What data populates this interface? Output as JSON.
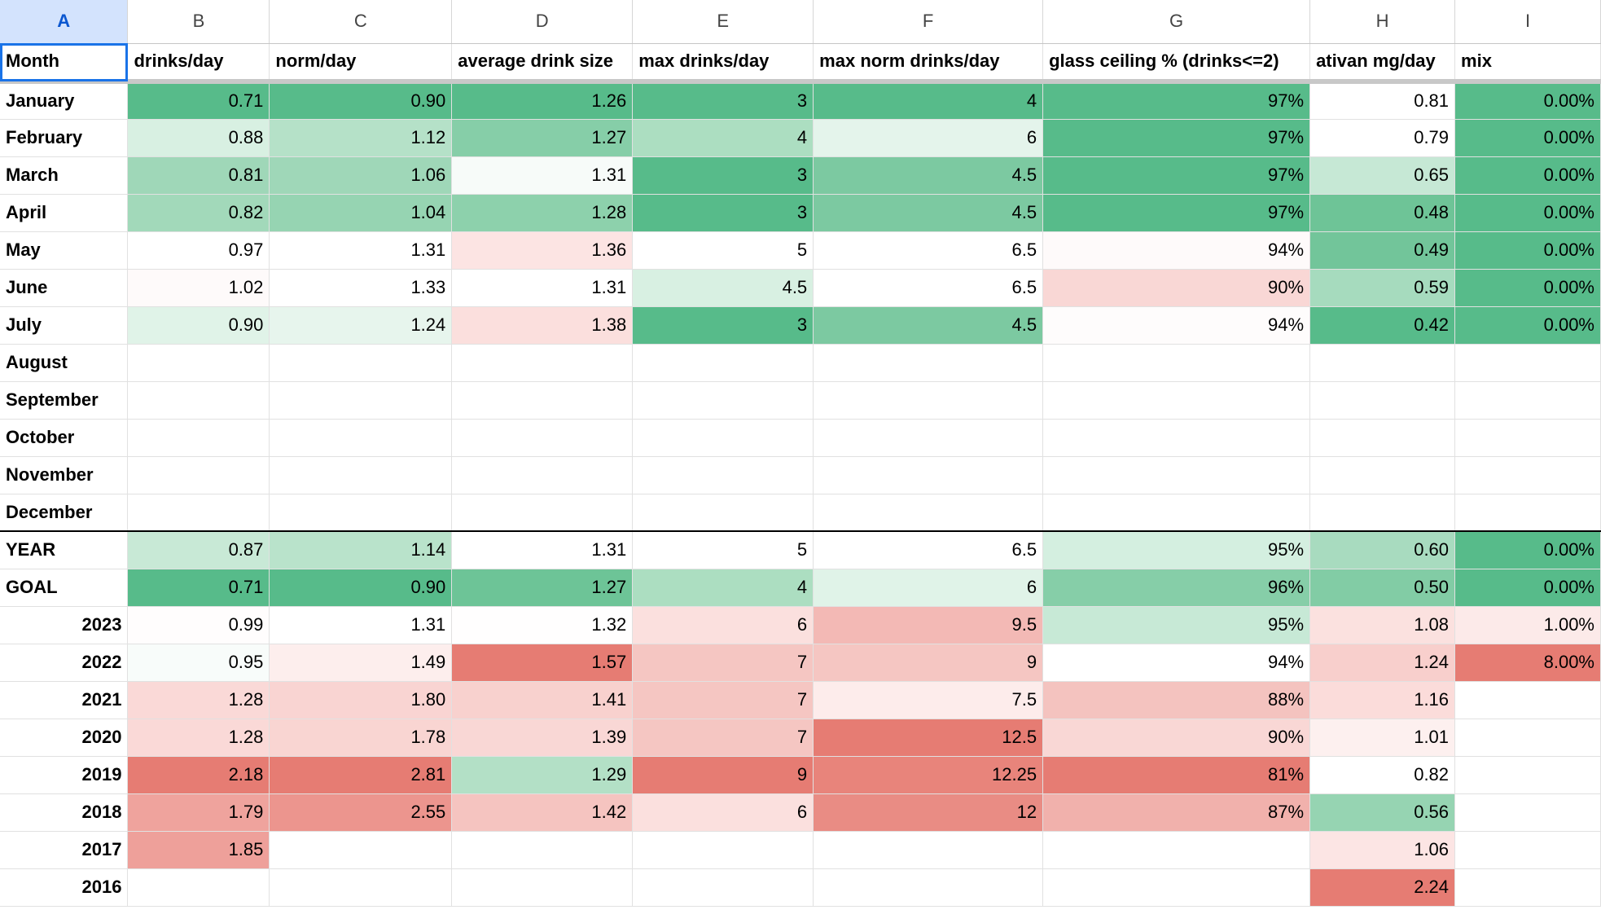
{
  "columns": [
    "A",
    "B",
    "C",
    "D",
    "E",
    "F",
    "G",
    "H",
    "I"
  ],
  "header": [
    "Month",
    "drinks/day",
    "norm/day",
    "average drink size",
    "max drinks/day",
    "max norm drinks/day",
    "glass ceiling % (drinks<=2)",
    "ativan mg/day",
    "mix"
  ],
  "rows": [
    {
      "label": "January",
      "cells": [
        "0.71",
        "0.90",
        "1.26",
        "3",
        "4",
        "97%",
        "0.81",
        "0.00%"
      ],
      "colors": [
        "#57bb8a",
        "#57bb8a",
        "#57bb8a",
        "#57bb8a",
        "#57bb8a",
        "#57bb8a",
        "#ffffff",
        "#57bb8a"
      ]
    },
    {
      "label": "February",
      "cells": [
        "0.88",
        "1.12",
        "1.27",
        "4",
        "6",
        "97%",
        "0.79",
        "0.00%"
      ],
      "colors": [
        "#d8f0e2",
        "#b5e1c8",
        "#86cea8",
        "#acdec1",
        "#e4f4eb",
        "#57bb8a",
        "#ffffff",
        "#57bb8a"
      ]
    },
    {
      "label": "March",
      "cells": [
        "0.81",
        "1.06",
        "1.31",
        "3",
        "4.5",
        "97%",
        "0.65",
        "0.00%"
      ],
      "colors": [
        "#9fd7b8",
        "#9fd7b8",
        "#f7fbf9",
        "#57bb8a",
        "#7cc9a1",
        "#57bb8a",
        "#c6e8d5",
        "#57bb8a"
      ]
    },
    {
      "label": "April",
      "cells": [
        "0.82",
        "1.04",
        "1.28",
        "3",
        "4.5",
        "97%",
        "0.48",
        "0.00%"
      ],
      "colors": [
        "#a2d9ba",
        "#96d4b2",
        "#8dd1ac",
        "#57bb8a",
        "#7cc9a1",
        "#57bb8a",
        "#6ec497",
        "#57bb8a"
      ]
    },
    {
      "label": "May",
      "cells": [
        "0.97",
        "1.31",
        "1.36",
        "5",
        "6.5",
        "94%",
        "0.49",
        "0.00%"
      ],
      "colors": [
        "#ffffff",
        "#ffffff",
        "#fce4e3",
        "#ffffff",
        "#ffffff",
        "#fefafa",
        "#72c59a",
        "#57bb8a"
      ]
    },
    {
      "label": "June",
      "cells": [
        "1.02",
        "1.33",
        "1.31",
        "4.5",
        "6.5",
        "90%",
        "0.59",
        "0.00%"
      ],
      "colors": [
        "#fefafa",
        "#ffffff",
        "#ffffff",
        "#d8f0e2",
        "#ffffff",
        "#f9d7d5",
        "#a6dbbe",
        "#57bb8a"
      ]
    },
    {
      "label": "July",
      "cells": [
        "0.90",
        "1.24",
        "1.38",
        "3",
        "4.5",
        "94%",
        "0.42",
        "0.00%"
      ],
      "colors": [
        "#e0f3e8",
        "#e7f5ed",
        "#fbdfdd",
        "#57bb8a",
        "#7cc9a1",
        "#fefcfc",
        "#57bb8a",
        "#57bb8a"
      ]
    },
    {
      "label": "August",
      "cells": [
        "",
        "",
        "",
        "",
        "",
        "",
        "",
        ""
      ],
      "colors": [
        "",
        "",
        "",
        "",
        "",
        "",
        "",
        ""
      ]
    },
    {
      "label": "September",
      "cells": [
        "",
        "",
        "",
        "",
        "",
        "",
        "",
        ""
      ],
      "colors": [
        "",
        "",
        "",
        "",
        "",
        "",
        "",
        ""
      ]
    },
    {
      "label": "October",
      "cells": [
        "",
        "",
        "",
        "",
        "",
        "",
        "",
        ""
      ],
      "colors": [
        "",
        "",
        "",
        "",
        "",
        "",
        "",
        ""
      ]
    },
    {
      "label": "November",
      "cells": [
        "",
        "",
        "",
        "",
        "",
        "",
        "",
        ""
      ],
      "colors": [
        "",
        "",
        "",
        "",
        "",
        "",
        "",
        ""
      ]
    },
    {
      "label": "December",
      "cells": [
        "",
        "",
        "",
        "",
        "",
        "",
        "",
        ""
      ],
      "colors": [
        "",
        "",
        "",
        "",
        "",
        "",
        "",
        ""
      ]
    },
    {
      "label": "YEAR",
      "cells": [
        "0.87",
        "1.14",
        "1.31",
        "5",
        "6.5",
        "95%",
        "0.60",
        "0.00%"
      ],
      "colors": [
        "#c8e9d6",
        "#b9e3cb",
        "#ffffff",
        "#ffffff",
        "#ffffff",
        "#d4efe0",
        "#a8dbbf",
        "#57bb8a"
      ]
    },
    {
      "label": "GOAL",
      "cells": [
        "0.71",
        "0.90",
        "1.27",
        "4",
        "6",
        "96%",
        "0.50",
        "0.00%"
      ],
      "colors": [
        "#57bb8a",
        "#57bb8a",
        "#6dc497",
        "#acdec1",
        "#e0f3e8",
        "#86cea8",
        "#82cca5",
        "#57bb8a"
      ]
    },
    {
      "label": "2023",
      "cells": [
        "0.99",
        "1.31",
        "1.32",
        "6",
        "9.5",
        "95%",
        "1.08",
        "1.00%"
      ],
      "colors": [
        "#fffdfd",
        "#ffffff",
        "#fffefe",
        "#fbe0de",
        "#f3b9b5",
        "#c7e9d6",
        "#fbe1df",
        "#fceae9"
      ]
    },
    {
      "label": "2022",
      "cells": [
        "0.95",
        "1.49",
        "1.57",
        "7",
        "9",
        "94%",
        "1.24",
        "8.00%"
      ],
      "colors": [
        "#f8fcfa",
        "#fdeeed",
        "#e67c73",
        "#f5c6c2",
        "#f5c6c2",
        "#ffffff",
        "#f8cfcc",
        "#e67c73"
      ]
    },
    {
      "label": "2021",
      "cells": [
        "1.28",
        "1.80",
        "1.41",
        "7",
        "7.5",
        "88%",
        "1.16",
        ""
      ],
      "colors": [
        "#fad9d7",
        "#f9d4d2",
        "#f8d1ce",
        "#f5c6c2",
        "#fdeceb",
        "#f4c3bf",
        "#fbdcda",
        ""
      ]
    },
    {
      "label": "2020",
      "cells": [
        "1.28",
        "1.78",
        "1.39",
        "7",
        "12.5",
        "90%",
        "1.01",
        ""
      ],
      "colors": [
        "#fad9d7",
        "#f9d5d2",
        "#f9d7d5",
        "#f5c6c2",
        "#e67c73",
        "#f9d7d5",
        "#fdf0ef",
        ""
      ]
    },
    {
      "label": "2019",
      "cells": [
        "2.18",
        "2.81",
        "1.29",
        "9",
        "12.25",
        "81%",
        "0.82",
        ""
      ],
      "colors": [
        "#e67c73",
        "#e67c73",
        "#b3e0c6",
        "#e67c73",
        "#e8847b",
        "#e67c73",
        "#ffffff",
        ""
      ]
    },
    {
      "label": "2018",
      "cells": [
        "1.79",
        "2.55",
        "1.42",
        "6",
        "12",
        "87%",
        "0.56",
        ""
      ],
      "colors": [
        "#efa39d",
        "#ec958e",
        "#f5c4c0",
        "#fbe0de",
        "#e98c84",
        "#f1b1ac",
        "#96d4b2",
        ""
      ]
    },
    {
      "label": "2017",
      "cells": [
        "1.85",
        "",
        "",
        "",
        "",
        "",
        "1.06",
        ""
      ],
      "colors": [
        "#eea09a",
        "",
        "",
        "",
        "",
        "",
        "#fce5e4",
        ""
      ]
    },
    {
      "label": "2016",
      "cells": [
        "",
        "",
        "",
        "",
        "",
        "",
        "2.24",
        ""
      ],
      "colors": [
        "",
        "",
        "",
        "",
        "",
        "",
        "#e67c73",
        ""
      ]
    }
  ]
}
